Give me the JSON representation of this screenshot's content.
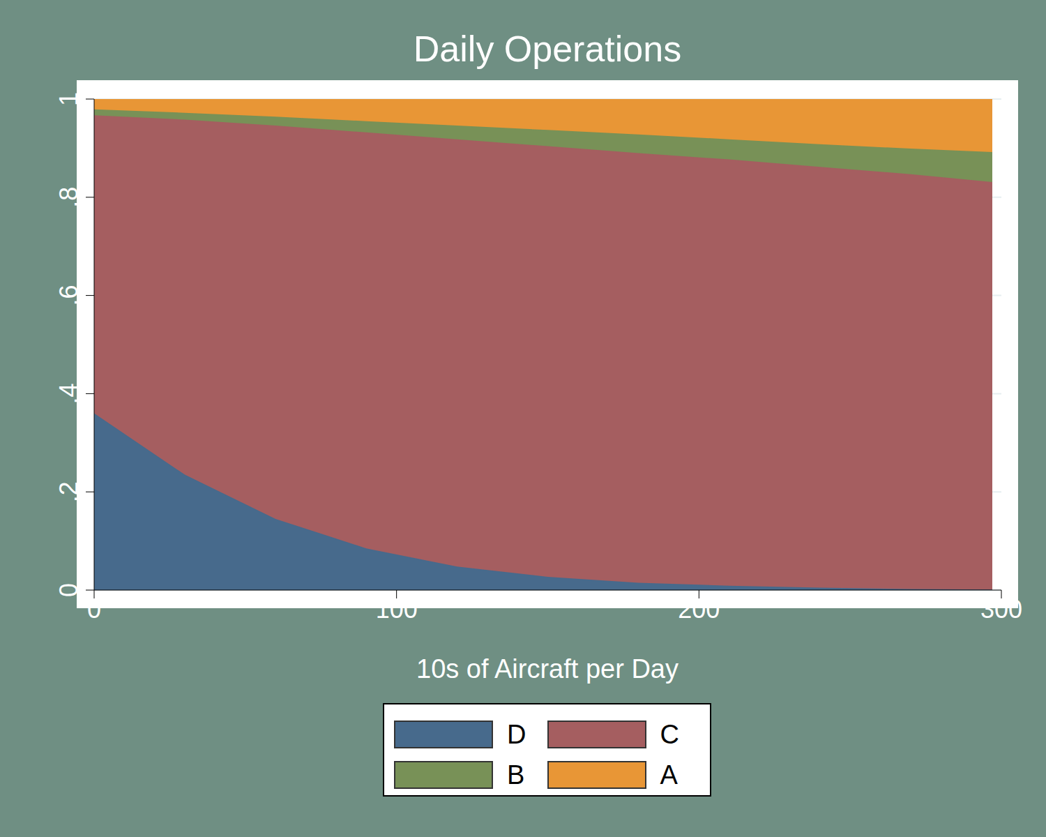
{
  "chart_data": {
    "type": "area",
    "title": "Daily Operations",
    "x_label": "10s of Aircraft per Day",
    "stacked": true,
    "grid": true,
    "legend": "bottom",
    "x": [
      0,
      30,
      60,
      90,
      120,
      150,
      180,
      210,
      240,
      270,
      297
    ],
    "series": [
      {
        "name": "D",
        "color": "#476a8c",
        "values": [
          0.36,
          0.235,
          0.145,
          0.085,
          0.048,
          0.027,
          0.015,
          0.009,
          0.005,
          0.002,
          0.001
        ]
      },
      {
        "name": "C",
        "color": "#a55e60",
        "values": [
          0.607,
          0.723,
          0.801,
          0.847,
          0.87,
          0.877,
          0.875,
          0.868,
          0.857,
          0.845,
          0.83
        ]
      },
      {
        "name": "B",
        "color": "#789157",
        "values": [
          0.012,
          0.014,
          0.018,
          0.023,
          0.028,
          0.033,
          0.038,
          0.041,
          0.046,
          0.052,
          0.061
        ]
      },
      {
        "name": "A",
        "color": "#e89636",
        "values": [
          0.021,
          0.028,
          0.036,
          0.045,
          0.054,
          0.063,
          0.072,
          0.082,
          0.092,
          0.101,
          0.108
        ]
      }
    ],
    "xlim": [
      0,
      300
    ],
    "xticks": [
      0,
      100,
      200,
      300
    ],
    "ylim": [
      0,
      1
    ],
    "yticks": [
      0,
      {
        "value": 0.2,
        "label": ".2"
      },
      {
        "value": 0.4,
        "label": ".4"
      },
      {
        "value": 0.6,
        "label": ".6"
      },
      {
        "value": 0.8,
        "label": ".8"
      },
      1
    ]
  }
}
